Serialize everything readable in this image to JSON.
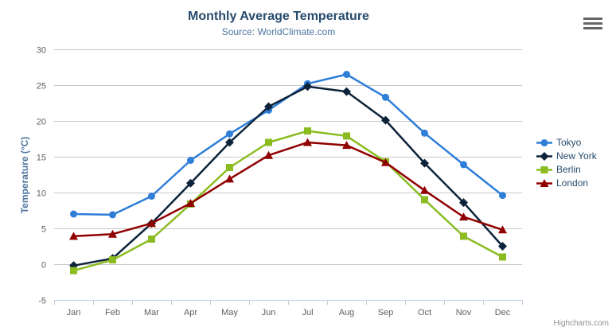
{
  "header": {
    "title": "Monthly Average Temperature",
    "subtitle": "Source: WorldClimate.com"
  },
  "chart_data": {
    "type": "line",
    "title": "Monthly Average Temperature",
    "subtitle": "Source: WorldClimate.com",
    "categories": [
      "Jan",
      "Feb",
      "Mar",
      "Apr",
      "May",
      "Jun",
      "Jul",
      "Aug",
      "Sep",
      "Oct",
      "Nov",
      "Dec"
    ],
    "xlabel": "",
    "ylabel": "Temperature (°C)",
    "ylim": [
      -5,
      30
    ],
    "ytick_interval": 5,
    "yticks": [
      -5,
      0,
      5,
      10,
      15,
      20,
      25,
      30
    ],
    "grid": true,
    "legend_position": "right",
    "series": [
      {
        "name": "Tokyo",
        "color": "#2f7ed8",
        "marker": "circle",
        "values": [
          7.0,
          6.9,
          9.5,
          14.5,
          18.2,
          21.5,
          25.2,
          26.5,
          23.3,
          18.3,
          13.9,
          9.6
        ]
      },
      {
        "name": "New York",
        "color": "#0d233a",
        "marker": "diamond",
        "values": [
          -0.2,
          0.8,
          5.7,
          11.3,
          17.0,
          22.0,
          24.8,
          24.1,
          20.1,
          14.1,
          8.6,
          2.5
        ]
      },
      {
        "name": "Berlin",
        "color": "#8bbc21",
        "marker": "square",
        "values": [
          -0.9,
          0.6,
          3.5,
          8.4,
          13.5,
          17.0,
          18.6,
          17.9,
          14.3,
          9.0,
          3.9,
          1.0
        ]
      },
      {
        "name": "London",
        "color": "#910000",
        "marker": "triangle",
        "values": [
          3.9,
          4.2,
          5.7,
          8.5,
          11.9,
          15.2,
          17.0,
          16.6,
          14.2,
          10.3,
          6.6,
          4.8
        ]
      }
    ]
  },
  "legend": {
    "items": [
      "Tokyo",
      "New York",
      "Berlin",
      "London"
    ]
  },
  "export_menu": {
    "icon": "hamburger-menu-icon"
  },
  "credits": {
    "label": "Highcharts.com"
  },
  "colors": {
    "title_text": "#274b6d",
    "subtitle_text": "#4d759e",
    "axis_label_text": "#606060",
    "axis_title_text": "#4d759e",
    "gridline": "#c8c8c8",
    "axis_line": "#c0d0e0",
    "legend_text": "#274b6d",
    "credits_text": "#909090",
    "menu_icon": "#666666",
    "background": "#ffffff"
  }
}
